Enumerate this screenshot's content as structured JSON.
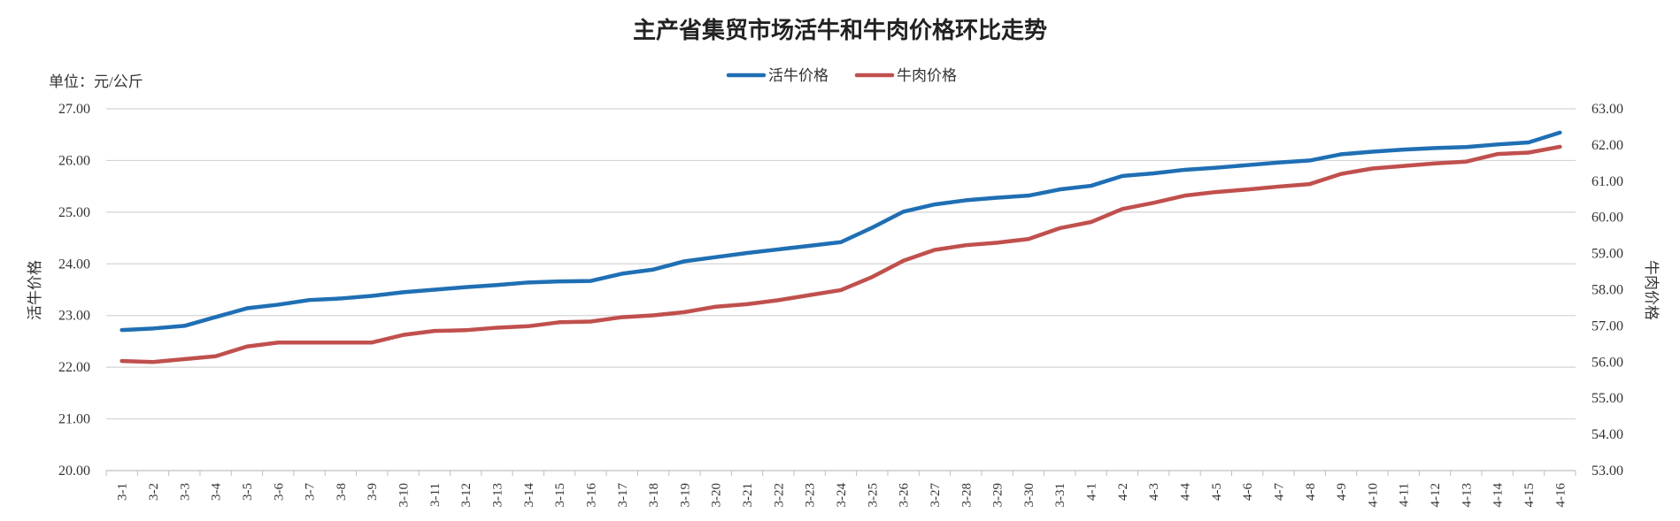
{
  "chart_data": {
    "type": "line",
    "title": "主产省集贸市场活牛和牛肉价格环比走势",
    "unit_label": "单位：元/公斤",
    "ylabel": "活牛价格",
    "ylabel_right": "牛肉价格",
    "ylim": [
      20,
      27
    ],
    "ylim_right": [
      53,
      63
    ],
    "y_ticks": [
      "27.00",
      "26.00",
      "25.00",
      "24.00",
      "23.00",
      "22.00",
      "21.00",
      "20.00"
    ],
    "y_ticks_right": [
      "63.00",
      "62.00",
      "61.00",
      "60.00",
      "59.00",
      "58.00",
      "57.00",
      "56.00",
      "55.00",
      "54.00",
      "53.00"
    ],
    "grid": true,
    "legend_position": "top-center",
    "categories": [
      "3-1",
      "3-2",
      "3-3",
      "3-4",
      "3-5",
      "3-6",
      "3-7",
      "3-8",
      "3-9",
      "3-10",
      "3-11",
      "3-12",
      "3-13",
      "3-14",
      "3-15",
      "3-16",
      "3-17",
      "3-18",
      "3-19",
      "3-20",
      "3-21",
      "3-22",
      "3-23",
      "3-24",
      "3-25",
      "3-26",
      "3-27",
      "3-28",
      "3-29",
      "3-30",
      "3-31",
      "4-1",
      "4-2",
      "4-3",
      "4-4",
      "4-5",
      "4-6",
      "4-7",
      "4-8",
      "4-9",
      "4-10",
      "4-11",
      "4-12",
      "4-13",
      "4-14",
      "4-15",
      "4-16"
    ],
    "series": [
      {
        "name": "活牛价格",
        "axis": "left",
        "color": "#1f6fb4",
        "values": [
          22.72,
          22.75,
          22.8,
          22.97,
          23.14,
          23.21,
          23.3,
          23.33,
          23.38,
          23.45,
          23.5,
          23.55,
          23.59,
          23.64,
          23.66,
          23.67,
          23.81,
          23.89,
          24.05,
          24.13,
          24.21,
          24.28,
          24.35,
          24.42,
          24.7,
          25.01,
          25.15,
          25.23,
          25.28,
          25.32,
          25.44,
          25.51,
          25.7,
          25.75,
          25.82,
          25.86,
          25.91,
          25.96,
          26.0,
          26.12,
          26.17,
          26.21,
          26.24,
          26.26,
          26.31,
          26.35,
          26.54
        ]
      },
      {
        "name": "牛肉价格",
        "axis": "right",
        "color": "#c0504d",
        "values": [
          56.03,
          56.0,
          56.08,
          56.16,
          56.43,
          56.54,
          56.54,
          56.54,
          56.54,
          56.75,
          56.86,
          56.88,
          56.95,
          56.99,
          57.1,
          57.12,
          57.24,
          57.29,
          57.38,
          57.53,
          57.6,
          57.71,
          57.85,
          57.99,
          58.35,
          58.8,
          59.1,
          59.23,
          59.3,
          59.4,
          59.7,
          59.87,
          60.23,
          60.4,
          60.6,
          60.7,
          60.77,
          60.85,
          60.92,
          61.2,
          61.35,
          61.42,
          61.49,
          61.54,
          61.75,
          61.79,
          61.95
        ]
      }
    ]
  }
}
